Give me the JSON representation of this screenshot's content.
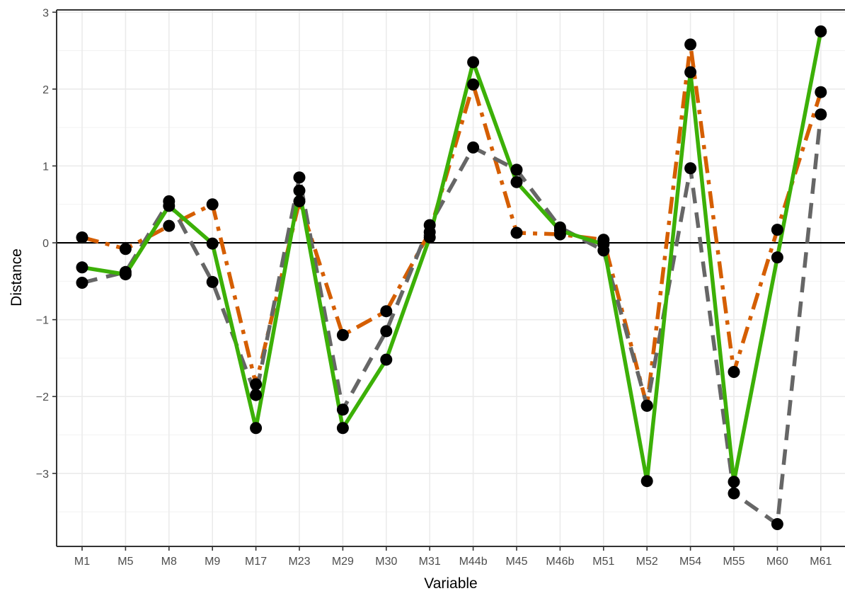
{
  "chart_data": {
    "type": "line",
    "xlabel": "Variable",
    "ylabel": "Distance",
    "categories": [
      "M1",
      "M5",
      "M8",
      "M9",
      "M17",
      "M23",
      "M29",
      "M30",
      "M31",
      "M44b",
      "M45",
      "M46b",
      "M51",
      "M52",
      "M54",
      "M55",
      "M60",
      "M61"
    ],
    "ylim": [
      -3.95,
      3.03
    ],
    "yticks": [
      -3,
      -2,
      -1,
      0,
      1,
      2,
      3
    ],
    "ytick_labels": [
      "−3",
      "−2",
      "−1",
      "0",
      "1",
      "2",
      "3"
    ],
    "grid": true,
    "reference_line_y": 0,
    "series": [
      {
        "values": [
          0.07,
          -0.08,
          0.22,
          0.5,
          -1.84,
          0.54,
          -1.2,
          -0.89,
          0.14,
          2.06,
          0.13,
          0.11,
          0.04,
          -2.12,
          2.58,
          -1.68,
          0.17,
          1.96
        ],
        "color": "#D55E00",
        "dash": "dashdot"
      },
      {
        "values": [
          -0.52,
          -0.38,
          0.54,
          -0.51,
          -1.98,
          0.85,
          -2.17,
          -1.15,
          0.23,
          1.24,
          0.95,
          0.2,
          -0.1,
          -2.12,
          0.97,
          -3.26,
          -3.66,
          1.67
        ],
        "color": "#666666",
        "dash": "dashed"
      },
      {
        "values": [
          -0.32,
          -0.41,
          0.48,
          -0.01,
          -2.41,
          0.68,
          -2.41,
          -1.52,
          0.07,
          2.35,
          0.79,
          0.16,
          -0.02,
          -3.1,
          2.22,
          -3.11,
          -0.19,
          2.75
        ],
        "color": "#3CB007",
        "dash": "solid"
      }
    ]
  }
}
